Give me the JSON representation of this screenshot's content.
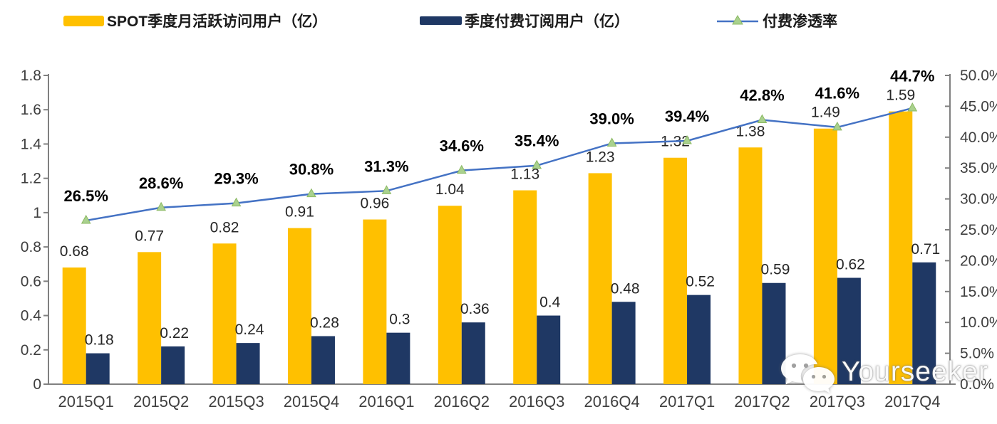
{
  "watermark": {
    "text": "Yourseeker",
    "icon": "wechat-icon"
  },
  "chart_data": {
    "type": "bar",
    "subtype": "grouped bars with secondary-axis line",
    "categories": [
      "2015Q1",
      "2015Q2",
      "2015Q3",
      "2015Q4",
      "2016Q1",
      "2016Q2",
      "2016Q3",
      "2016Q4",
      "2017Q1",
      "2017Q2",
      "2017Q3",
      "2017Q4"
    ],
    "series": [
      {
        "name": "SPOT季度月活跃访问用户（亿）",
        "type": "bar",
        "axis": "left",
        "color": "#FFC000",
        "values": [
          0.68,
          0.77,
          0.82,
          0.91,
          0.96,
          1.04,
          1.13,
          1.23,
          1.32,
          1.38,
          1.49,
          1.59
        ],
        "labels": [
          "0.68",
          "0.77",
          "0.82",
          "0.91",
          "0.96",
          "1.04",
          "1.13",
          "1.23",
          "1.32",
          "1.38",
          "1.49",
          "1.59"
        ]
      },
      {
        "name": "季度付费订阅用户（亿）",
        "type": "bar",
        "axis": "left",
        "color": "#1F3864",
        "values": [
          0.18,
          0.22,
          0.24,
          0.28,
          0.3,
          0.36,
          0.4,
          0.48,
          0.52,
          0.59,
          0.62,
          0.71
        ],
        "labels": [
          "0.18",
          "0.22",
          "0.24",
          "0.28",
          "0.3",
          "0.36",
          "0.4",
          "0.48",
          "0.52",
          "0.59",
          "0.62",
          "0.71"
        ]
      },
      {
        "name": "付费渗透率",
        "type": "line",
        "axis": "right",
        "color": "#4472C4",
        "marker": "triangle",
        "marker_color": "#A9D18E",
        "values": [
          26.5,
          28.6,
          29.3,
          30.8,
          31.3,
          34.6,
          35.4,
          39.0,
          39.4,
          42.8,
          41.6,
          44.7
        ],
        "labels": [
          "26.5%",
          "28.6%",
          "29.3%",
          "30.8%",
          "31.3%",
          "34.6%",
          "35.4%",
          "39.0%",
          "39.4%",
          "42.8%",
          "41.6%",
          "44.7%"
        ]
      }
    ],
    "left_axis": {
      "min": 0,
      "max": 1.8,
      "step": 0.2,
      "ticks": [
        "0",
        "0.2",
        "0.4",
        "0.6",
        "0.8",
        "1",
        "1.2",
        "1.4",
        "1.6",
        "1.8"
      ]
    },
    "right_axis": {
      "min": 0,
      "max": 50,
      "step": 5,
      "ticks": [
        "0.0%",
        "5.0%",
        "10.0%",
        "15.0%",
        "20.0%",
        "25.0%",
        "30.0%",
        "35.0%",
        "40.0%",
        "45.0%",
        "50.0%"
      ]
    },
    "grid": false,
    "legend_position": "top",
    "colors": {
      "axis": "#808080",
      "tick_text": "#3f3f3f",
      "bar_label": "#262626",
      "pct_label": "#000000"
    }
  }
}
